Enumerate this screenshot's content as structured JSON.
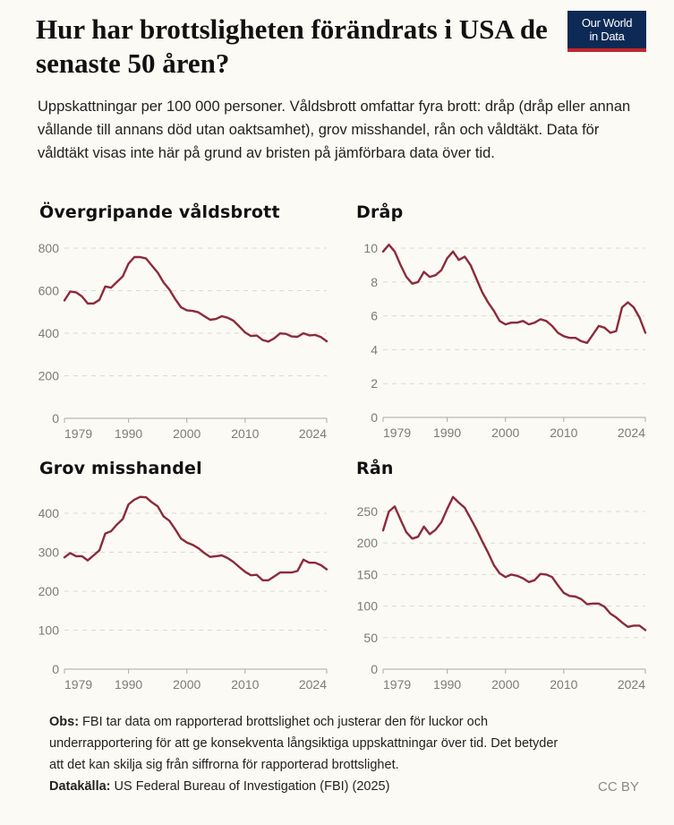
{
  "header": {
    "title": "Hur har brottsligheten förändrats i USA de senaste 50 åren?",
    "subtitle": "Uppskattningar per 100 000 personer. Våldsbrott omfattar fyra brott: dråp (dråp eller annan vållande till annans död utan oaktsamhet), grov misshandel, rån och våldtäkt. Data för våldtäkt visas inte här på grund av bristen på jämförbara data över tid.",
    "logo_line1": "Our World",
    "logo_line2": "in Data"
  },
  "footer": {
    "note_label": "Obs:",
    "note_text": " FBI tar data om rapporterad brottslighet och justerar den för luckor och underrapportering för att ge konsekventa långsiktiga uppskattningar över tid. Det betyder att det kan skilja sig från siffrorna för rapporterad brottslighet.",
    "source_label": "Datakälla:",
    "source_text": " US Federal Bureau of Investigation (FBI) (2025)",
    "license": "CC BY"
  },
  "colors": {
    "line": "#8c2a3a",
    "background": "#fbfaf4",
    "logo_bg": "#0c2a55",
    "logo_accent": "#c0262d"
  },
  "chart_data": [
    {
      "type": "line",
      "title": "Övergripande våldsbrott",
      "xlabel": "",
      "ylabel": "",
      "xlim": [
        1979,
        2024
      ],
      "ylim": [
        0,
        800
      ],
      "yticks": [
        0,
        200,
        400,
        600,
        800
      ],
      "xticks": [
        1979,
        1990,
        2000,
        2010,
        2024
      ],
      "grid": true,
      "x": [
        1979,
        1980,
        1981,
        1982,
        1983,
        1984,
        1985,
        1986,
        1987,
        1988,
        1989,
        1990,
        1991,
        1992,
        1993,
        1994,
        1995,
        1996,
        1997,
        1998,
        1999,
        2000,
        2001,
        2002,
        2003,
        2004,
        2005,
        2006,
        2007,
        2008,
        2009,
        2010,
        2011,
        2012,
        2013,
        2014,
        2015,
        2016,
        2017,
        2018,
        2019,
        2020,
        2021,
        2022,
        2023,
        2024
      ],
      "series": [
        {
          "name": "Övergripande våldsbrott",
          "values": [
            554,
            596,
            592,
            573,
            540,
            540,
            557,
            620,
            614,
            641,
            667,
            727,
            758,
            758,
            751,
            718,
            685,
            639,
            606,
            561,
            522,
            508,
            505,
            498,
            480,
            463,
            467,
            480,
            473,
            459,
            432,
            404,
            387,
            389,
            368,
            361,
            376,
            399,
            397,
            385,
            383,
            400,
            390,
            392,
            382,
            362
          ]
        }
      ]
    },
    {
      "type": "line",
      "title": "Dråp",
      "xlabel": "",
      "ylabel": "",
      "xlim": [
        1979,
        2024
      ],
      "ylim": [
        0,
        10
      ],
      "yticks": [
        0,
        2,
        4,
        6,
        8,
        10
      ],
      "xticks": [
        1979,
        1990,
        2000,
        2010,
        2024
      ],
      "grid": true,
      "x": [
        1979,
        1980,
        1981,
        1982,
        1983,
        1984,
        1985,
        1986,
        1987,
        1988,
        1989,
        1990,
        1991,
        1992,
        1993,
        1994,
        1995,
        1996,
        1997,
        1998,
        1999,
        2000,
        2001,
        2002,
        2003,
        2004,
        2005,
        2006,
        2007,
        2008,
        2009,
        2010,
        2011,
        2012,
        2013,
        2014,
        2015,
        2016,
        2017,
        2018,
        2019,
        2020,
        2021,
        2022,
        2023,
        2024
      ],
      "series": [
        {
          "name": "Dråp",
          "values": [
            9.8,
            10.2,
            9.8,
            9.0,
            8.3,
            7.9,
            8.0,
            8.6,
            8.3,
            8.4,
            8.7,
            9.4,
            9.8,
            9.3,
            9.5,
            9.0,
            8.2,
            7.4,
            6.8,
            6.3,
            5.7,
            5.5,
            5.6,
            5.6,
            5.7,
            5.5,
            5.6,
            5.8,
            5.7,
            5.4,
            5.0,
            4.8,
            4.7,
            4.7,
            4.5,
            4.4,
            4.9,
            5.4,
            5.3,
            5.0,
            5.1,
            6.5,
            6.8,
            6.5,
            5.9,
            5.0
          ]
        }
      ]
    },
    {
      "type": "line",
      "title": "Grov misshandel",
      "xlabel": "",
      "ylabel": "",
      "xlim": [
        1979,
        2024
      ],
      "ylim": [
        0,
        450
      ],
      "yticks": [
        0,
        100,
        200,
        300,
        400
      ],
      "xticks": [
        1979,
        1990,
        2000,
        2010,
        2024
      ],
      "grid": true,
      "x": [
        1979,
        1980,
        1981,
        1982,
        1983,
        1984,
        1985,
        1986,
        1987,
        1988,
        1989,
        1990,
        1991,
        1992,
        1993,
        1994,
        1995,
        1996,
        1997,
        1998,
        1999,
        2000,
        2001,
        2002,
        2003,
        2004,
        2005,
        2006,
        2007,
        2008,
        2009,
        2010,
        2011,
        2012,
        2013,
        2014,
        2015,
        2016,
        2017,
        2018,
        2019,
        2020,
        2021,
        2022,
        2023,
        2024
      ],
      "series": [
        {
          "name": "Grov misshandel",
          "values": [
            287,
            298,
            290,
            290,
            279,
            292,
            305,
            348,
            354,
            371,
            385,
            423,
            435,
            442,
            441,
            428,
            418,
            392,
            381,
            359,
            335,
            325,
            319,
            310,
            298,
            288,
            290,
            292,
            285,
            275,
            262,
            250,
            241,
            242,
            228,
            228,
            238,
            248,
            248,
            248,
            252,
            281,
            273,
            273,
            267,
            256
          ]
        }
      ]
    },
    {
      "type": "line",
      "title": "Rån",
      "xlabel": "",
      "ylabel": "",
      "xlim": [
        1979,
        2024
      ],
      "ylim": [
        0,
        275
      ],
      "yticks": [
        0,
        50,
        100,
        150,
        200,
        250
      ],
      "xticks": [
        1979,
        1990,
        2000,
        2010,
        2024
      ],
      "grid": true,
      "x": [
        1979,
        1980,
        1981,
        1982,
        1983,
        1984,
        1985,
        1986,
        1987,
        1988,
        1989,
        1990,
        1991,
        1992,
        1993,
        1994,
        1995,
        1996,
        1997,
        1998,
        1999,
        2000,
        2001,
        2002,
        2003,
        2004,
        2005,
        2006,
        2007,
        2008,
        2009,
        2010,
        2011,
        2012,
        2013,
        2014,
        2015,
        2016,
        2017,
        2018,
        2019,
        2020,
        2021,
        2022,
        2023,
        2024
      ],
      "series": [
        {
          "name": "Rån",
          "values": [
            220,
            250,
            258,
            237,
            217,
            207,
            210,
            226,
            214,
            221,
            233,
            254,
            273,
            264,
            256,
            239,
            222,
            203,
            185,
            165,
            152,
            146,
            150,
            148,
            144,
            138,
            141,
            151,
            150,
            146,
            133,
            121,
            116,
            115,
            111,
            103,
            104,
            104,
            99,
            88,
            82,
            74,
            67,
            69,
            69,
            62
          ]
        }
      ]
    }
  ]
}
